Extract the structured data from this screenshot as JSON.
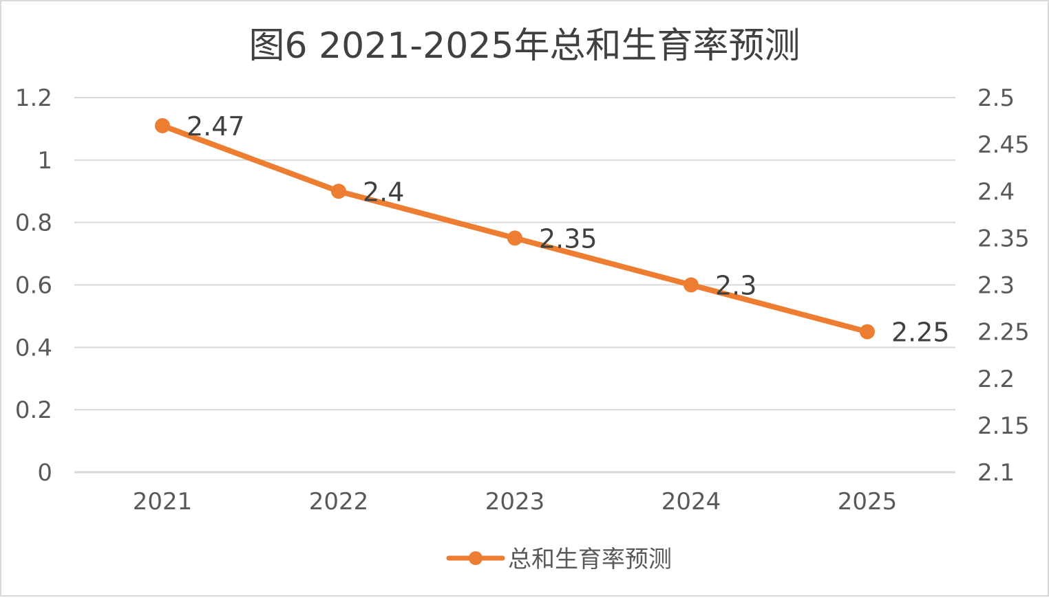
{
  "chart_data": {
    "type": "line",
    "title": "图6   2021-2025年总和生育率预测",
    "categories": [
      "2021",
      "2022",
      "2023",
      "2024",
      "2025"
    ],
    "series": [
      {
        "name": "总和生育率预测",
        "axis": "right",
        "values": [
          2.47,
          2.4,
          2.35,
          2.3,
          2.25
        ],
        "data_labels": [
          "2.47",
          "2.4",
          "2.35",
          "2.3",
          "2.25"
        ]
      }
    ],
    "y_left": {
      "ylim": [
        0,
        1.2
      ],
      "ticks": [
        "0",
        "0.2",
        "0.4",
        "0.6",
        "0.8",
        "1",
        "1.2"
      ]
    },
    "y_right": {
      "ylim": [
        2.1,
        2.5
      ],
      "ticks": [
        "2.1",
        "2.15",
        "2.2",
        "2.25",
        "2.3",
        "2.35",
        "2.4",
        "2.45",
        "2.5"
      ]
    },
    "grid": true,
    "legend": "bottom",
    "colors": {
      "series": "#ed7d31",
      "grid": "#d9d9d9"
    }
  }
}
